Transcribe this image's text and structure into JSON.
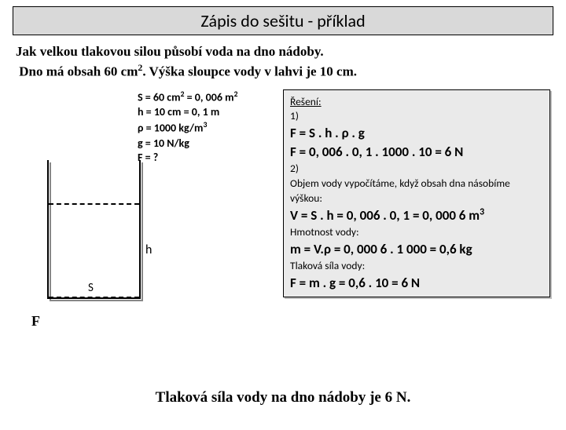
{
  "title": "Zápis do sešitu - příklad",
  "problem": {
    "line1": "Jak velkou tlakovou silou působí voda na dno nádoby.",
    "line2_a": "Dno má obsah 60 cm",
    "line2_b": ". Výška sloupce vody v lahvi je 10 cm."
  },
  "given": {
    "l1a": "S = 60 cm",
    "l1b": " = 0, 006 m",
    "l2": "h = 10 cm = 0, 1 m",
    "l3a": "ρ = 1000 kg/m",
    "l4": "g = 10 N/kg",
    "l5": "F = ?"
  },
  "diagram": {
    "h": "h",
    "s": "S",
    "f": "F"
  },
  "solution": {
    "heading": "Řešení:",
    "s1": "1)",
    "f1": "F = S . h . ρ . g",
    "f2": "F = 0, 006 . 0, 1 . 1000 . 10 = 6 N",
    "s2": "2)",
    "t1": "Objem vody vypočítáme, když obsah dna násobíme výškou:",
    "v1a": "V = S . h = 0, 006 . 0, 1 = 0, 000 6 m",
    "t2": "Hmotnost vody:",
    "m1": "m = V.ρ = 0, 000 6 . 1 000 = 0,6 kg",
    "t3": "Tlaková síla vody:",
    "f3": "F = m . g = 0,6 . 10 = 6 N"
  },
  "conclusion": "Tlaková síla vody na dno nádoby je 6 N.",
  "style": {
    "title_bg": "#d9d9d9",
    "box_bg": "#eaeaea",
    "border": "#000000",
    "text": "#000000",
    "page_bg": "#ffffff"
  }
}
